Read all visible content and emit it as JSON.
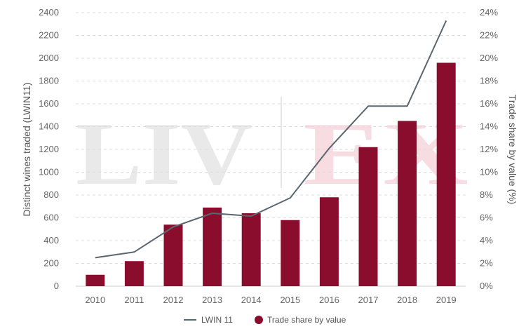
{
  "watermark": {
    "left": "LIV",
    "right": "EX"
  },
  "chart_data": {
    "type": "bar",
    "categories": [
      "2010",
      "2011",
      "2012",
      "2013",
      "2014",
      "2015",
      "2016",
      "2017",
      "2018",
      "2019"
    ],
    "series": [
      {
        "name": "Trade share by value",
        "type": "bar",
        "axis": "right",
        "values": [
          1.0,
          2.2,
          5.4,
          6.9,
          6.4,
          5.8,
          7.8,
          12.2,
          14.5,
          19.6
        ]
      },
      {
        "name": "LWIN 11",
        "type": "line",
        "axis": "left",
        "values": [
          250,
          300,
          520,
          640,
          615,
          775,
          1210,
          1580,
          1580,
          2330
        ]
      }
    ],
    "y_left": {
      "label": "Distinct wines traded (LWIN11)",
      "min": 0,
      "max": 2400,
      "step": 200
    },
    "y_right": {
      "label": "Trade share by value (%)",
      "min": 0,
      "max": 24,
      "step": 2,
      "suffix": "%"
    },
    "grid": true,
    "legend": "bottom-center",
    "colors": {
      "bar": "#8b0d2e",
      "line": "#5b6770",
      "grid": "#dddddd",
      "tick": "#666666",
      "watermark_left": "#e9e9e9",
      "watermark_right": "#f7dde2"
    }
  }
}
